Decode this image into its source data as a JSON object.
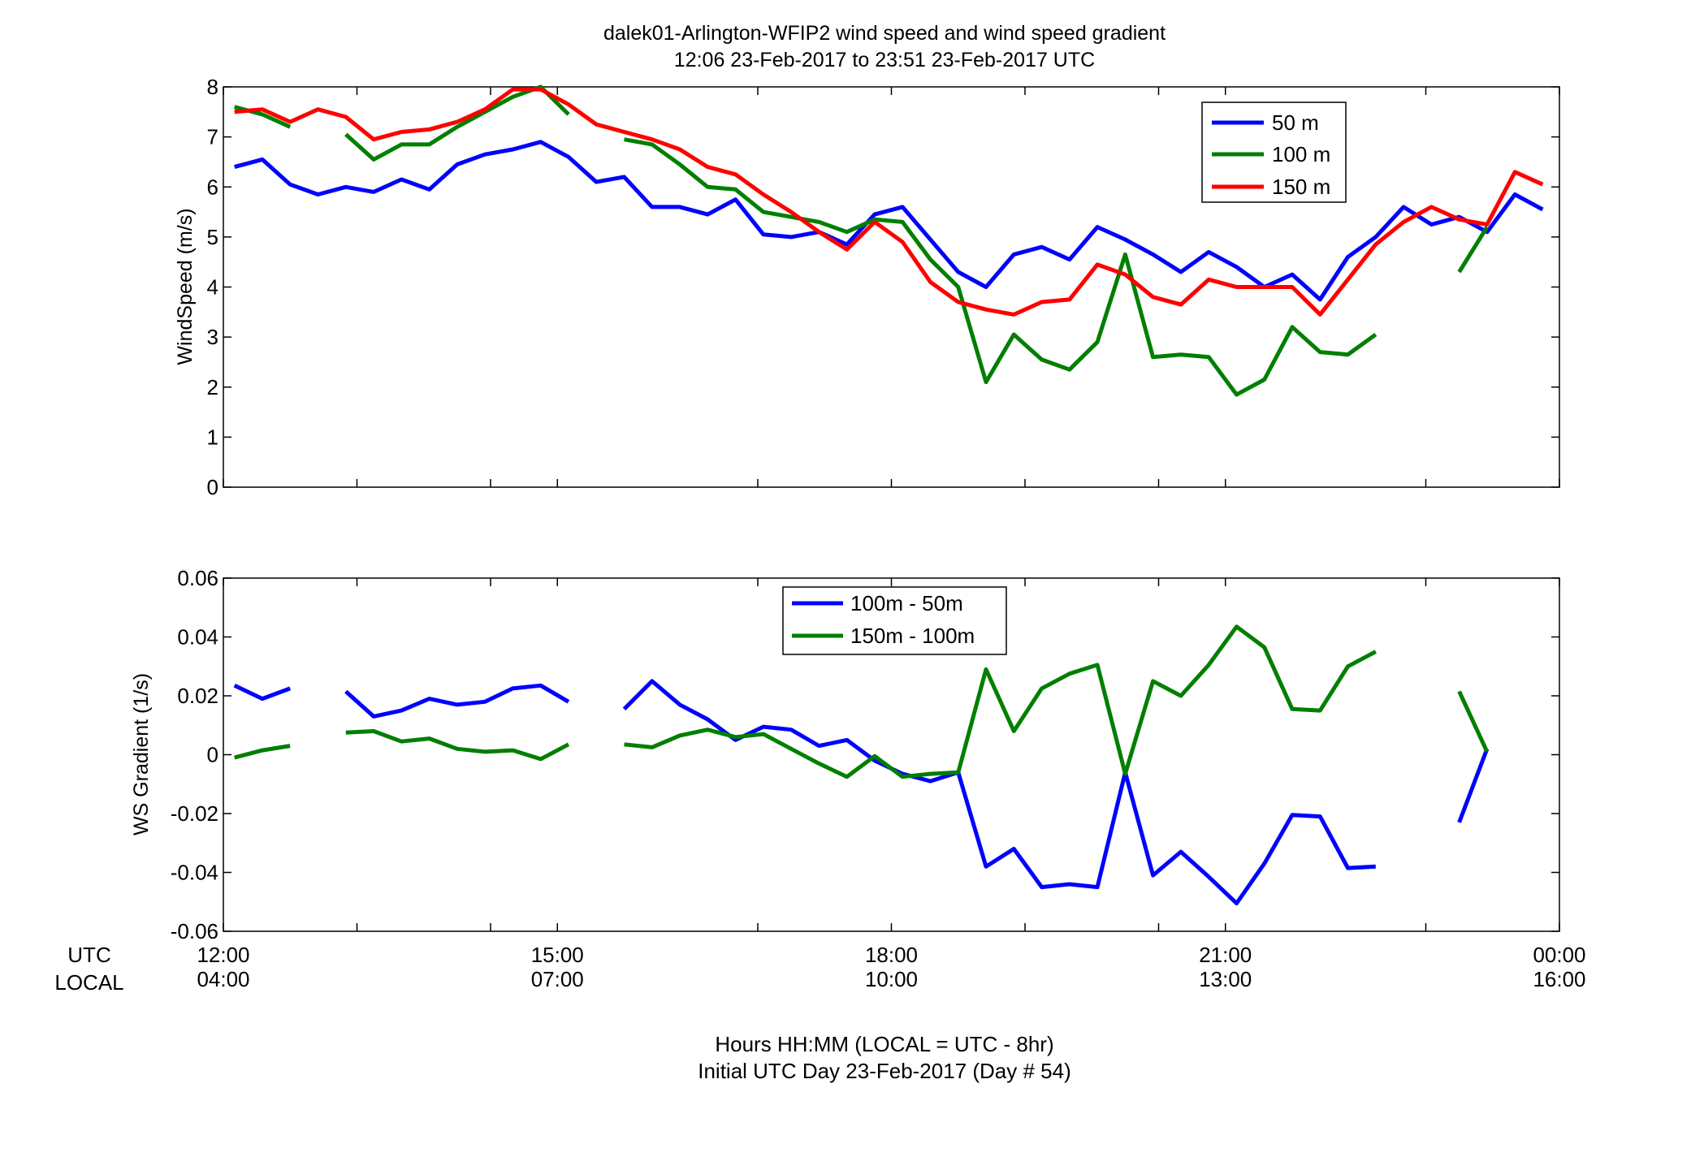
{
  "title": {
    "line1": "dalek01-Arlington-WFIP2  wind speed and wind speed gradient",
    "line2": "12:06 23-Feb-2017 to 23:51 23-Feb-2017  UTC"
  },
  "xaxis": {
    "row1_name": "UTC",
    "row2_name": "LOCAL",
    "utc_ticks": [
      "12:00",
      "15:00",
      "18:00",
      "21:00",
      "00:00"
    ],
    "local_ticks": [
      "04:00",
      "07:00",
      "10:00",
      "13:00",
      "16:00"
    ],
    "xlabel_line1": "Hours HH:MM  (LOCAL = UTC - 8hr)",
    "xlabel_line2": "Initial UTC Day 23-Feb-2017 (Day # 54)",
    "range_hours": [
      12,
      24
    ],
    "major_tick_hours": [
      12,
      15,
      18,
      21,
      24
    ],
    "minor_tick_hours": [
      13.2,
      14.4,
      16.8,
      19.2,
      20.4,
      22.8
    ]
  },
  "colors": {
    "blue": "#0000ff",
    "green": "#007f00",
    "red": "#ff0000"
  },
  "chart_data": [
    {
      "type": "line",
      "ylabel": "WindSpeed (m/s)",
      "ylim": [
        0,
        8
      ],
      "yticks": [
        "0",
        "1",
        "2",
        "3",
        "4",
        "5",
        "6",
        "7",
        "8"
      ],
      "legend_position": "top-right",
      "grid": false,
      "x": [
        12.1,
        12.35,
        12.6,
        12.85,
        13.1,
        13.35,
        13.6,
        13.85,
        14.1,
        14.35,
        14.6,
        14.85,
        15.1,
        15.35,
        15.6,
        15.85,
        16.1,
        16.35,
        16.6,
        16.85,
        17.1,
        17.35,
        17.6,
        17.85,
        18.1,
        18.35,
        18.6,
        18.85,
        19.1,
        19.35,
        19.6,
        19.85,
        20.1,
        20.35,
        20.6,
        20.85,
        21.1,
        21.35,
        21.6,
        21.85,
        22.1,
        22.35,
        22.6,
        22.85,
        23.1,
        23.35,
        23.6,
        23.85
      ],
      "series": [
        {
          "name": "50 m",
          "color": "#0000ff",
          "values": [
            6.4,
            6.55,
            6.05,
            5.85,
            6.0,
            5.9,
            6.15,
            5.95,
            6.45,
            6.65,
            6.75,
            6.9,
            6.6,
            6.1,
            6.2,
            5.6,
            5.6,
            5.45,
            5.75,
            5.05,
            5.0,
            5.1,
            4.85,
            5.45,
            5.6,
            4.95,
            4.3,
            4.0,
            4.65,
            4.8,
            4.55,
            5.2,
            4.95,
            4.65,
            4.3,
            4.7,
            4.4,
            4.0,
            4.25,
            3.75,
            4.6,
            5.0,
            5.6,
            5.25,
            5.4,
            5.1,
            5.85,
            5.55
          ]
        },
        {
          "name": "100 m",
          "color": "#007f00",
          "values": [
            7.6,
            7.45,
            7.2,
            null,
            7.05,
            6.55,
            6.85,
            6.85,
            7.2,
            7.5,
            7.8,
            8.0,
            7.45,
            null,
            6.95,
            6.85,
            6.45,
            6.0,
            5.95,
            5.5,
            5.4,
            5.3,
            5.1,
            5.35,
            5.3,
            4.55,
            4.0,
            2.1,
            3.05,
            2.55,
            2.35,
            2.9,
            4.65,
            2.6,
            2.65,
            2.6,
            1.85,
            2.15,
            3.2,
            2.7,
            2.65,
            3.05,
            null,
            null,
            4.3,
            5.2,
            null,
            null
          ]
        },
        {
          "name": "150 m",
          "color": "#ff0000",
          "values": [
            7.5,
            7.55,
            7.3,
            7.55,
            7.4,
            6.95,
            7.1,
            7.15,
            7.3,
            7.55,
            7.95,
            7.95,
            7.65,
            7.25,
            7.1,
            6.95,
            6.75,
            6.4,
            6.25,
            5.85,
            5.5,
            5.1,
            4.75,
            5.3,
            4.9,
            4.1,
            3.7,
            3.55,
            3.45,
            3.7,
            3.75,
            4.45,
            4.25,
            3.8,
            3.65,
            4.15,
            4.0,
            4.0,
            4.0,
            3.45,
            4.15,
            4.85,
            5.3,
            5.6,
            5.35,
            5.25,
            6.3,
            6.05
          ]
        }
      ]
    },
    {
      "type": "line",
      "ylabel": "WS Gradient (1/s)",
      "ylim": [
        -0.06,
        0.06
      ],
      "yticks": [
        "-0.06",
        "-0.04",
        "-0.02",
        "0",
        "0.02",
        "0.04",
        "0.06"
      ],
      "legend_position": "top-center",
      "grid": false,
      "x": [
        12.1,
        12.35,
        12.6,
        12.85,
        13.1,
        13.35,
        13.6,
        13.85,
        14.1,
        14.35,
        14.6,
        14.85,
        15.1,
        15.35,
        15.6,
        15.85,
        16.1,
        16.35,
        16.6,
        16.85,
        17.1,
        17.35,
        17.6,
        17.85,
        18.1,
        18.35,
        18.6,
        18.85,
        19.1,
        19.35,
        19.6,
        19.85,
        20.1,
        20.35,
        20.6,
        20.85,
        21.1,
        21.35,
        21.6,
        21.85,
        22.1,
        22.35,
        22.6,
        22.85,
        23.1,
        23.35,
        23.6,
        23.85
      ],
      "series": [
        {
          "name": "100m - 50m",
          "color": "#0000ff",
          "values": [
            0.0235,
            0.019,
            0.0225,
            null,
            0.0215,
            0.013,
            0.015,
            0.019,
            0.017,
            0.018,
            0.0225,
            0.0235,
            0.018,
            null,
            0.0155,
            0.025,
            0.017,
            0.012,
            0.005,
            0.0095,
            0.0085,
            0.003,
            0.005,
            -0.002,
            -0.0065,
            -0.009,
            -0.006,
            -0.038,
            -0.032,
            -0.045,
            -0.044,
            -0.045,
            -0.006,
            -0.041,
            -0.033,
            -0.0415,
            -0.0505,
            -0.037,
            -0.0205,
            -0.021,
            -0.0385,
            -0.038,
            null,
            null,
            -0.023,
            0.002,
            null,
            null
          ]
        },
        {
          "name": "150m - 100m",
          "color": "#007f00",
          "values": [
            -0.001,
            0.0015,
            0.003,
            null,
            0.0075,
            0.008,
            0.0045,
            0.0055,
            0.002,
            0.001,
            0.0015,
            -0.0015,
            0.0035,
            null,
            0.0035,
            0.0025,
            0.0065,
            0.0085,
            0.006,
            0.007,
            0.002,
            -0.003,
            -0.0075,
            -0.0005,
            -0.0075,
            -0.0065,
            -0.006,
            0.029,
            0.008,
            0.0225,
            0.0275,
            0.0305,
            -0.0065,
            0.025,
            0.02,
            0.0305,
            0.0435,
            0.0365,
            0.0155,
            0.015,
            0.03,
            0.035,
            null,
            null,
            0.0215,
            0.001,
            null,
            null
          ]
        }
      ]
    }
  ]
}
